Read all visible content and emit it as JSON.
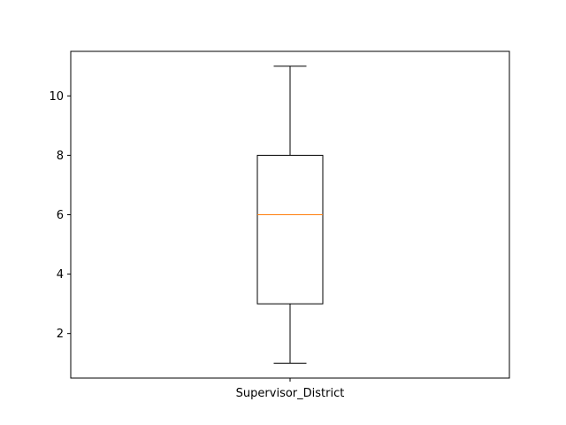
{
  "chart_data": {
    "type": "box",
    "categories": [
      "Supervisor_District"
    ],
    "series": [
      {
        "whisker_low": 1,
        "q1": 3,
        "median": 6,
        "q3": 8,
        "whisker_high": 11
      }
    ],
    "title": "",
    "xlabel": "",
    "ylabel": "",
    "ylim": [
      0.5,
      11.5
    ],
    "yticks": [
      2,
      4,
      6,
      8,
      10
    ],
    "grid": false,
    "colors": {
      "box": "#000000",
      "median": "#ff7f0e",
      "axes": "#000000"
    }
  }
}
